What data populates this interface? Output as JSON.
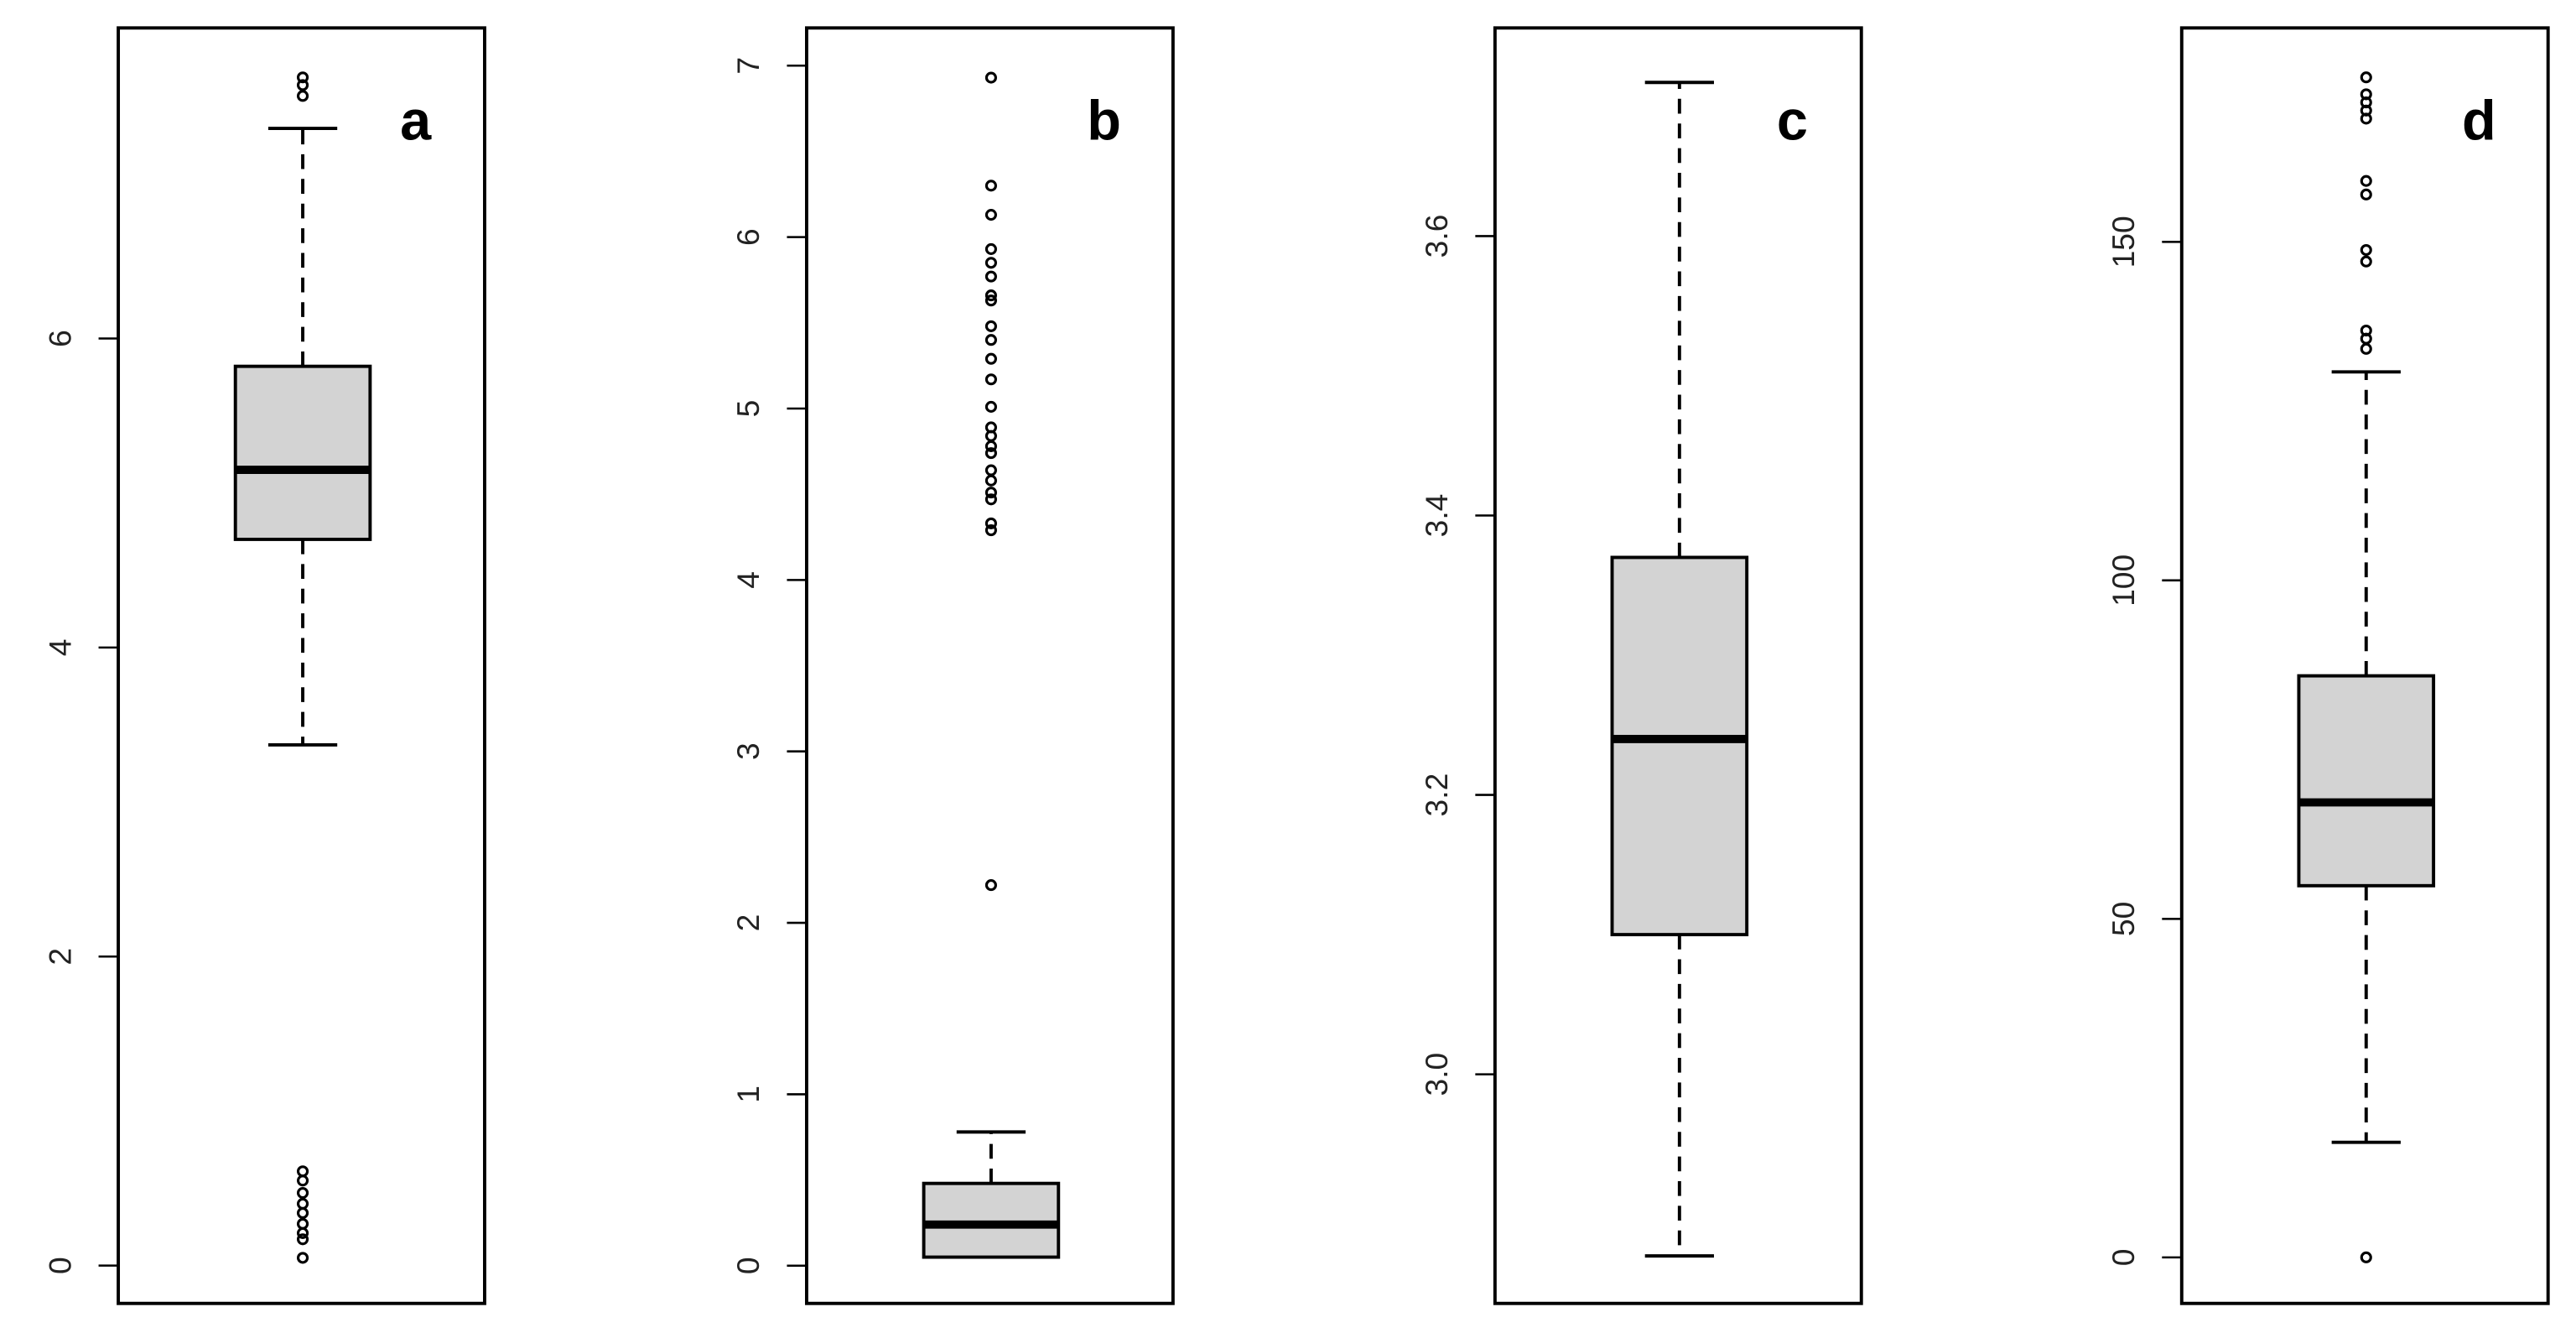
{
  "chart_data": [
    {
      "type": "box",
      "title": "a",
      "q1": 4.7,
      "median": 5.15,
      "q3": 5.82,
      "whisker_low": 3.37,
      "whisker_high": 7.36,
      "outliers": [
        7.69,
        7.64,
        7.57,
        0.61,
        0.55,
        0.47,
        0.4,
        0.34,
        0.27,
        0.21,
        0.17,
        0.05
      ],
      "ylim": [
        -0.245,
        8.01
      ],
      "yticks": [
        0,
        2,
        4,
        6
      ],
      "color": "#d3d3d3"
    },
    {
      "type": "box",
      "title": "b",
      "q1": 0.05,
      "median": 0.24,
      "q3": 0.48,
      "whisker_low": 0.05,
      "whisker_high": 0.78,
      "outliers": [
        6.93,
        6.3,
        6.13,
        5.93,
        5.85,
        5.77,
        5.66,
        5.63,
        5.48,
        5.4,
        5.29,
        5.17,
        5.01,
        4.89,
        4.84,
        4.78,
        4.74,
        4.64,
        4.58,
        4.51,
        4.47,
        4.33,
        4.29,
        2.22
      ],
      "ylim": [
        -0.22,
        7.22
      ],
      "yticks": [
        0,
        1,
        2,
        3,
        4,
        5,
        6,
        7
      ],
      "color": "#d3d3d3"
    },
    {
      "type": "box",
      "title": "c",
      "q1": 3.1,
      "median": 3.24,
      "q3": 3.37,
      "whisker_low": 2.87,
      "whisker_high": 3.71,
      "outliers": [],
      "ylim": [
        2.836,
        3.749
      ],
      "yticks": [
        {
          "value": 3,
          "label": "3.0"
        },
        3.2,
        3.4,
        3.6
      ],
      "color": "#d3d3d3"
    },
    {
      "type": "box",
      "title": "d",
      "q1": 54.9,
      "median": 67.2,
      "q3": 85.9,
      "whisker_low": 17.0,
      "whisker_high": 130.8,
      "outliers": [
        0,
        134.2,
        135.7,
        136.9,
        147.1,
        148.8,
        157.0,
        159.0,
        168.2,
        169.4,
        170.6,
        171.8,
        174.3
      ],
      "ylim": [
        -6.8,
        181.6
      ],
      "yticks": [
        0,
        50,
        100,
        150
      ],
      "color": "#d3d3d3"
    }
  ]
}
